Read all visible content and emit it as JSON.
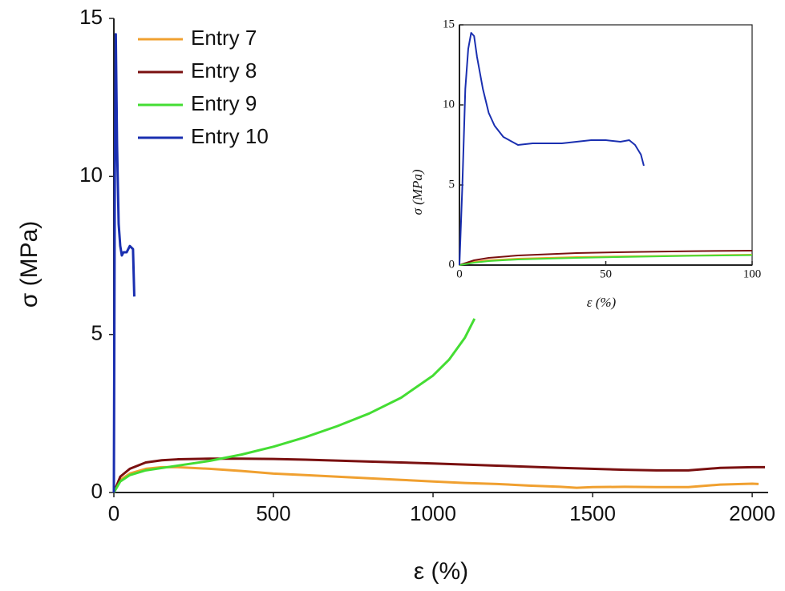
{
  "chart_data": [
    {
      "type": "line",
      "xlabel": "ε (%)",
      "ylabel": "σ (MPa)",
      "xlim": [
        0,
        2050
      ],
      "ylim": [
        0,
        15
      ],
      "xticks": [
        0,
        500,
        1000,
        1500,
        2000
      ],
      "yticks": [
        0,
        5,
        10,
        15
      ],
      "legend": "upper-left",
      "series": [
        {
          "name": "Entry 7",
          "color": "#f0a030",
          "x": [
            0,
            20,
            50,
            100,
            150,
            200,
            300,
            400,
            500,
            600,
            700,
            800,
            900,
            1000,
            1100,
            1200,
            1300,
            1400,
            1450,
            1500,
            1600,
            1700,
            1800,
            1900,
            2000,
            2020
          ],
          "values": [
            0,
            0.4,
            0.6,
            0.75,
            0.8,
            0.8,
            0.75,
            0.68,
            0.6,
            0.55,
            0.5,
            0.45,
            0.4,
            0.35,
            0.3,
            0.27,
            0.22,
            0.18,
            0.15,
            0.17,
            0.18,
            0.17,
            0.17,
            0.25,
            0.28,
            0.27
          ]
        },
        {
          "name": "Entry 8",
          "color": "#7a1010",
          "x": [
            0,
            20,
            50,
            100,
            150,
            200,
            300,
            400,
            500,
            600,
            800,
            1000,
            1200,
            1400,
            1600,
            1700,
            1800,
            1900,
            2000,
            2040
          ],
          "values": [
            0,
            0.5,
            0.75,
            0.95,
            1.02,
            1.05,
            1.07,
            1.07,
            1.06,
            1.04,
            0.98,
            0.92,
            0.85,
            0.78,
            0.72,
            0.7,
            0.7,
            0.78,
            0.8,
            0.8
          ]
        },
        {
          "name": "Entry 9",
          "color": "#44dd33",
          "x": [
            0,
            20,
            50,
            100,
            200,
            300,
            400,
            500,
            600,
            700,
            800,
            900,
            1000,
            1050,
            1100,
            1130
          ],
          "values": [
            0,
            0.35,
            0.55,
            0.7,
            0.85,
            1.0,
            1.2,
            1.45,
            1.75,
            2.1,
            2.5,
            3.0,
            3.7,
            4.2,
            4.9,
            5.5
          ]
        },
        {
          "name": "Entry 10",
          "color": "#1a2fb0",
          "x": [
            0,
            3,
            6,
            10,
            15,
            20,
            25,
            30,
            40,
            50,
            60,
            64
          ],
          "values": [
            0,
            10,
            14.5,
            11,
            8.5,
            7.8,
            7.5,
            7.6,
            7.6,
            7.8,
            7.7,
            6.2
          ]
        }
      ]
    },
    {
      "type": "line",
      "xlabel": "ε (%)",
      "ylabel": "σ (MPa)",
      "xlim": [
        0,
        100
      ],
      "ylim": [
        0,
        15
      ],
      "xticks": [
        0,
        50,
        100
      ],
      "yticks": [
        0,
        5,
        10,
        15
      ],
      "series": [
        {
          "color": "#f0a030",
          "x": [
            0,
            5,
            10,
            20,
            40,
            60,
            80,
            100
          ],
          "values": [
            0,
            0.2,
            0.3,
            0.4,
            0.5,
            0.55,
            0.6,
            0.65
          ]
        },
        {
          "color": "#7a1010",
          "x": [
            0,
            5,
            10,
            20,
            40,
            60,
            80,
            100
          ],
          "values": [
            0,
            0.3,
            0.45,
            0.6,
            0.75,
            0.82,
            0.87,
            0.9
          ]
        },
        {
          "color": "#44dd33",
          "x": [
            0,
            5,
            10,
            20,
            40,
            60,
            80,
            100
          ],
          "values": [
            0,
            0.15,
            0.25,
            0.35,
            0.45,
            0.52,
            0.58,
            0.62
          ]
        },
        {
          "color": "#1a2fb0",
          "x": [
            0,
            1,
            2,
            3,
            4,
            5,
            6,
            8,
            10,
            12,
            15,
            20,
            25,
            30,
            35,
            40,
            45,
            50,
            55,
            58,
            60,
            62,
            63
          ],
          "values": [
            0,
            5,
            11,
            13.5,
            14.5,
            14.3,
            13,
            11,
            9.5,
            8.7,
            8,
            7.5,
            7.6,
            7.6,
            7.6,
            7.7,
            7.8,
            7.8,
            7.7,
            7.8,
            7.5,
            6.9,
            6.2
          ]
        }
      ]
    }
  ]
}
